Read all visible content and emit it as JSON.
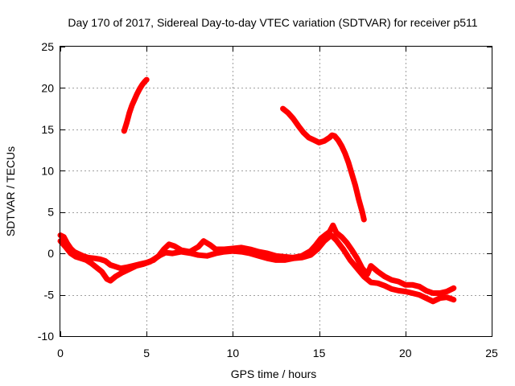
{
  "chart_data": {
    "type": "scatter",
    "title": "Day 170 of 2017, Sidereal Day-to-day VTEC variation (SDTVAR) for receiver p511",
    "xlabel": "GPS time / hours",
    "ylabel": "SDTVAR / TECUs",
    "xlim": [
      0,
      25
    ],
    "ylim": [
      -10,
      25
    ],
    "xticks": [
      0,
      5,
      10,
      15,
      20,
      25
    ],
    "yticks": [
      -10,
      -5,
      0,
      5,
      10,
      15,
      20,
      25
    ],
    "xtick_labels": [
      "0",
      "5",
      "10",
      "15",
      "20",
      "25"
    ],
    "ytick_labels": [
      "-10",
      "-5",
      "0",
      "5",
      "10",
      "15",
      "20",
      "25"
    ],
    "grid": true,
    "marker": "+",
    "color": "#ff0000",
    "series": [
      {
        "name": "track-early-high",
        "points": [
          [
            3.7,
            14.8
          ],
          [
            3.85,
            15.8
          ],
          [
            4.0,
            17.0
          ],
          [
            4.15,
            17.9
          ],
          [
            4.3,
            18.6
          ],
          [
            4.45,
            19.3
          ],
          [
            4.6,
            19.9
          ],
          [
            4.75,
            20.4
          ],
          [
            4.9,
            20.8
          ],
          [
            5.0,
            21.0
          ]
        ]
      },
      {
        "name": "track-late-high",
        "points": [
          [
            12.9,
            17.5
          ],
          [
            13.2,
            17.0
          ],
          [
            13.5,
            16.3
          ],
          [
            13.8,
            15.4
          ],
          [
            14.1,
            14.6
          ],
          [
            14.4,
            14.0
          ],
          [
            14.7,
            13.7
          ],
          [
            15.0,
            13.4
          ],
          [
            15.3,
            13.6
          ],
          [
            15.6,
            14.0
          ],
          [
            15.75,
            14.3
          ],
          [
            15.9,
            14.2
          ],
          [
            16.1,
            13.7
          ],
          [
            16.3,
            13.0
          ],
          [
            16.5,
            12.1
          ],
          [
            16.7,
            11.0
          ],
          [
            16.9,
            9.6
          ],
          [
            17.1,
            8.2
          ],
          [
            17.3,
            6.5
          ],
          [
            17.5,
            5.0
          ],
          [
            17.6,
            4.1
          ]
        ]
      },
      {
        "name": "track-main-upper",
        "points": [
          [
            0.0,
            2.2
          ],
          [
            0.2,
            2.0
          ],
          [
            0.4,
            1.2
          ],
          [
            0.6,
            0.6
          ],
          [
            0.8,
            0.2
          ],
          [
            1.0,
            0.0
          ],
          [
            1.3,
            -0.3
          ],
          [
            1.6,
            -0.5
          ],
          [
            2.0,
            -0.6
          ],
          [
            2.3,
            -0.7
          ],
          [
            2.6,
            -0.9
          ],
          [
            2.9,
            -1.4
          ],
          [
            3.2,
            -1.6
          ],
          [
            3.5,
            -1.8
          ],
          [
            3.8,
            -1.7
          ],
          [
            4.2,
            -1.5
          ],
          [
            4.6,
            -1.3
          ],
          [
            5.0,
            -1.1
          ],
          [
            5.4,
            -0.8
          ],
          [
            5.7,
            -0.3
          ],
          [
            6.0,
            0.5
          ],
          [
            6.3,
            1.1
          ],
          [
            6.6,
            0.9
          ],
          [
            7.0,
            0.4
          ],
          [
            7.5,
            0.2
          ],
          [
            8.0,
            0.8
          ],
          [
            8.3,
            1.5
          ],
          [
            8.7,
            1.0
          ],
          [
            9.0,
            0.5
          ],
          [
            9.5,
            0.5
          ],
          [
            10.0,
            0.6
          ],
          [
            10.5,
            0.7
          ],
          [
            11.0,
            0.5
          ],
          [
            11.5,
            0.2
          ],
          [
            12.0,
            0.0
          ],
          [
            12.5,
            -0.3
          ],
          [
            13.0,
            -0.4
          ],
          [
            13.5,
            -0.5
          ],
          [
            14.0,
            -0.3
          ],
          [
            14.5,
            0.3
          ],
          [
            14.8,
            1.0
          ],
          [
            15.1,
            1.8
          ],
          [
            15.4,
            2.3
          ],
          [
            15.6,
            2.6
          ],
          [
            15.8,
            3.4
          ],
          [
            16.0,
            2.5
          ],
          [
            16.3,
            2.0
          ],
          [
            16.6,
            1.3
          ],
          [
            16.9,
            0.4
          ],
          [
            17.2,
            -0.6
          ],
          [
            17.5,
            -1.8
          ],
          [
            17.8,
            -2.5
          ],
          [
            18.0,
            -1.5
          ],
          [
            18.4,
            -2.2
          ],
          [
            18.8,
            -2.8
          ],
          [
            19.2,
            -3.2
          ],
          [
            19.6,
            -3.4
          ],
          [
            20.0,
            -3.8
          ],
          [
            20.4,
            -3.8
          ],
          [
            20.8,
            -4.0
          ],
          [
            21.2,
            -4.5
          ],
          [
            21.6,
            -4.8
          ],
          [
            22.0,
            -4.8
          ],
          [
            22.4,
            -4.6
          ],
          [
            22.8,
            -4.2
          ]
        ]
      },
      {
        "name": "track-main-lower",
        "points": [
          [
            0.0,
            1.5
          ],
          [
            0.3,
            0.8
          ],
          [
            0.6,
            0.0
          ],
          [
            0.9,
            -0.4
          ],
          [
            1.2,
            -0.6
          ],
          [
            1.5,
            -0.8
          ],
          [
            1.8,
            -1.2
          ],
          [
            2.1,
            -1.7
          ],
          [
            2.4,
            -2.2
          ],
          [
            2.7,
            -3.1
          ],
          [
            2.9,
            -3.3
          ],
          [
            3.2,
            -2.8
          ],
          [
            3.6,
            -2.3
          ],
          [
            4.0,
            -1.9
          ],
          [
            4.4,
            -1.5
          ],
          [
            4.8,
            -1.3
          ],
          [
            5.2,
            -1.0
          ],
          [
            5.5,
            -0.6
          ],
          [
            5.8,
            -0.2
          ],
          [
            6.1,
            0.1
          ],
          [
            6.5,
            0.0
          ],
          [
            7.0,
            0.2
          ],
          [
            7.6,
            0.0
          ],
          [
            8.0,
            -0.2
          ],
          [
            8.5,
            -0.3
          ],
          [
            9.0,
            0.0
          ],
          [
            9.5,
            0.2
          ],
          [
            10.0,
            0.3
          ],
          [
            10.5,
            0.2
          ],
          [
            11.0,
            0.0
          ],
          [
            11.5,
            -0.3
          ],
          [
            12.0,
            -0.6
          ],
          [
            12.5,
            -0.8
          ],
          [
            13.0,
            -0.8
          ],
          [
            13.5,
            -0.6
          ],
          [
            14.0,
            -0.5
          ],
          [
            14.5,
            -0.2
          ],
          [
            14.9,
            0.5
          ],
          [
            15.3,
            1.5
          ],
          [
            15.7,
            2.2
          ],
          [
            16.0,
            1.6
          ],
          [
            16.4,
            0.5
          ],
          [
            16.8,
            -0.8
          ],
          [
            17.2,
            -1.8
          ],
          [
            17.6,
            -2.8
          ],
          [
            18.0,
            -3.5
          ],
          [
            18.4,
            -3.6
          ],
          [
            18.8,
            -3.9
          ],
          [
            19.2,
            -4.3
          ],
          [
            19.6,
            -4.5
          ],
          [
            20.0,
            -4.6
          ],
          [
            20.4,
            -4.8
          ],
          [
            20.8,
            -5.0
          ],
          [
            21.2,
            -5.4
          ],
          [
            21.6,
            -5.8
          ],
          [
            22.0,
            -5.4
          ],
          [
            22.4,
            -5.3
          ],
          [
            22.8,
            -5.6
          ]
        ]
      }
    ]
  }
}
